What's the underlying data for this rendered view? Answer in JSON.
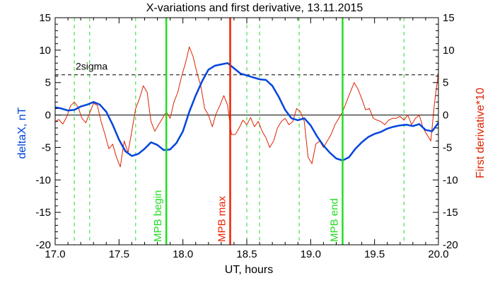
{
  "chart_data": {
    "type": "line",
    "title": "X-variations and first derivative, 13.11.2015",
    "xlabel": "UT, hours",
    "ylabel_left": "deltaX, nT",
    "ylabel_right": "First derivative*10",
    "xlim": [
      17.0,
      20.0
    ],
    "ylim_left": [
      -20,
      15
    ],
    "ylim_right": [
      -20,
      15
    ],
    "x_ticks": [
      "17.0",
      "17.5",
      "18.0",
      "18.5",
      "19.0",
      "19.5",
      "20.0"
    ],
    "y_ticks": [
      "15",
      "10",
      "5",
      "0",
      "-5",
      "-10",
      "-15",
      "-20"
    ],
    "colors": {
      "deltaX": "#0044dd",
      "derivative": "#dd2200",
      "green": "#22dd22",
      "red_marker": "#ee2200",
      "threshold": "#000000"
    },
    "threshold": {
      "label": "2sigma",
      "value": 6.2
    },
    "vertical_markers": [
      {
        "x": 17.87,
        "label": "MPB begin",
        "color": "#22dd22",
        "style": "solid"
      },
      {
        "x": 18.37,
        "label": "MPB max",
        "color": "#ee2200",
        "style": "solid"
      },
      {
        "x": 19.25,
        "label": "MPB end",
        "color": "#22dd22",
        "style": "solid"
      }
    ],
    "dashed_markers": [
      17.15,
      17.27,
      17.63,
      18.5,
      18.6,
      18.91,
      19.73
    ],
    "series": [
      {
        "key": "deltaX",
        "x": [
          17.0,
          17.05,
          17.1,
          17.15,
          17.2,
          17.25,
          17.3,
          17.35,
          17.4,
          17.45,
          17.5,
          17.55,
          17.6,
          17.65,
          17.7,
          17.75,
          17.8,
          17.85,
          17.9,
          17.95,
          18.0,
          18.05,
          18.1,
          18.15,
          18.2,
          18.25,
          18.3,
          18.35,
          18.4,
          18.45,
          18.5,
          18.55,
          18.6,
          18.65,
          18.7,
          18.75,
          18.8,
          18.85,
          18.9,
          18.95,
          19.0,
          19.05,
          19.1,
          19.15,
          19.2,
          19.25,
          19.3,
          19.35,
          19.4,
          19.45,
          19.5,
          19.55,
          19.6,
          19.65,
          19.7,
          19.75,
          19.8,
          19.85,
          19.9,
          19.95,
          20.0
        ],
        "y": [
          1.2,
          1.0,
          0.7,
          0.8,
          1.3,
          1.6,
          2.0,
          1.6,
          0.5,
          -1.5,
          -3.8,
          -5.6,
          -6.3,
          -6.0,
          -5.2,
          -4.2,
          -4.6,
          -5.4,
          -5.3,
          -4.3,
          -2.5,
          0.5,
          3.0,
          5.2,
          7.0,
          7.6,
          7.8,
          8.0,
          7.2,
          6.4,
          6.1,
          5.8,
          5.5,
          5.4,
          4.5,
          2.8,
          0.8,
          -0.5,
          -0.8,
          -0.5,
          -1.6,
          -3.3,
          -4.7,
          -5.8,
          -6.7,
          -7.0,
          -6.5,
          -5.2,
          -4.2,
          -3.4,
          -2.9,
          -2.6,
          -2.1,
          -1.8,
          -1.6,
          -1.5,
          -1.7,
          -1.4,
          -2.3,
          -2.5,
          -1.2
        ]
      },
      {
        "key": "derivative",
        "x": [
          17.0,
          17.03,
          17.06,
          17.09,
          17.12,
          17.15,
          17.18,
          17.21,
          17.24,
          17.27,
          17.3,
          17.33,
          17.36,
          17.39,
          17.42,
          17.45,
          17.48,
          17.51,
          17.54,
          17.57,
          17.6,
          17.63,
          17.66,
          17.69,
          17.72,
          17.75,
          17.78,
          17.81,
          17.84,
          17.87,
          17.9,
          17.93,
          17.96,
          17.99,
          18.02,
          18.05,
          18.08,
          18.11,
          18.14,
          18.17,
          18.2,
          18.23,
          18.26,
          18.29,
          18.32,
          18.35,
          18.38,
          18.41,
          18.44,
          18.47,
          18.5,
          18.53,
          18.56,
          18.59,
          18.62,
          18.65,
          18.68,
          18.71,
          18.74,
          18.77,
          18.8,
          18.83,
          18.86,
          18.89,
          18.92,
          18.95,
          18.98,
          19.01,
          19.04,
          19.07,
          19.1,
          19.13,
          19.16,
          19.19,
          19.22,
          19.25,
          19.28,
          19.31,
          19.34,
          19.37,
          19.4,
          19.43,
          19.46,
          19.49,
          19.52,
          19.55,
          19.58,
          19.61,
          19.64,
          19.67,
          19.7,
          19.73,
          19.76,
          19.79,
          19.82,
          19.85,
          19.88,
          19.91,
          19.94,
          19.97,
          20.0
        ],
        "y": [
          -1.0,
          -0.7,
          -1.4,
          -0.3,
          1.4,
          2.0,
          1.2,
          -0.5,
          -1.2,
          0.3,
          1.8,
          1.5,
          -1.0,
          -3.0,
          -5.2,
          -4.5,
          -6.5,
          -8.0,
          -4.0,
          -5.8,
          -2.5,
          1.0,
          2.5,
          4.5,
          3.5,
          -1.0,
          -2.5,
          -1.5,
          -0.5,
          0.5,
          -0.5,
          2.0,
          3.5,
          6.0,
          8.0,
          10.5,
          9.0,
          6.5,
          4.5,
          1.0,
          0.0,
          -1.8,
          0.2,
          1.5,
          3.0,
          1.5,
          -3.0,
          -3.0,
          -2.0,
          -0.8,
          -1.5,
          -0.4,
          -1.8,
          -1.0,
          -2.5,
          -3.5,
          -5.0,
          -4.0,
          -2.0,
          -1.0,
          -0.5,
          -1.5,
          -1.0,
          1.0,
          0.5,
          -1.0,
          -6.5,
          -7.5,
          -4.5,
          -4.0,
          -5.0,
          -4.0,
          -3.0,
          -1.5,
          -0.5,
          0.5,
          2.0,
          3.5,
          5.0,
          4.0,
          2.5,
          0.8,
          1.0,
          -0.5,
          -0.8,
          -1.0,
          -1.5,
          -0.8,
          -0.5,
          -0.5,
          -0.2,
          -0.8,
          0.0,
          -1.5,
          -0.5,
          0.0,
          -2.0,
          -3.0,
          -4.0,
          2.0,
          6.5
        ]
      }
    ]
  }
}
